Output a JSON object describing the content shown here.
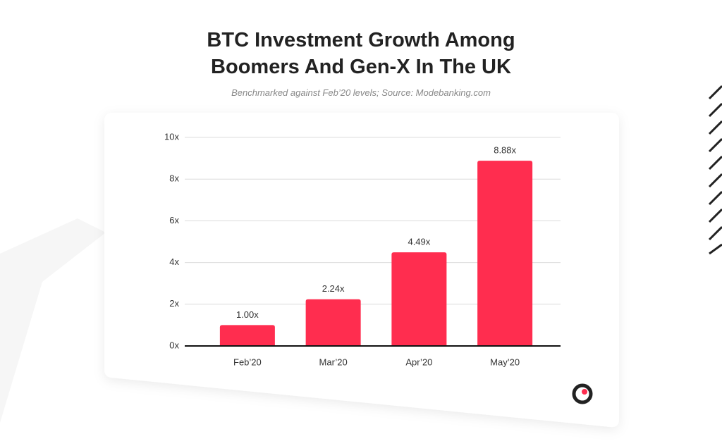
{
  "chart_data": {
    "type": "bar",
    "title": "BTC Investment Growth Among Boomers And Gen-X In The UK",
    "subtitle": "Benchmarked against Feb’20 levels; Source: Modebanking.com",
    "categories": [
      "Feb’20",
      "Mar’20",
      "Apr’20",
      "May’20"
    ],
    "values": [
      1.0,
      2.24,
      4.49,
      8.88
    ],
    "value_labels": [
      "1.00x",
      "2.24x",
      "4.49x",
      "8.88x"
    ],
    "color": "#ff2d4f",
    "ylim": [
      0,
      10
    ],
    "yticks": [
      {
        "value": 0,
        "label": "0x"
      },
      {
        "value": 2,
        "label": "2x"
      },
      {
        "value": 4,
        "label": "4x"
      },
      {
        "value": 6,
        "label": "6x"
      },
      {
        "value": 8,
        "label": "8x"
      },
      {
        "value": 10,
        "label": "10x"
      }
    ],
    "grid": true
  }
}
